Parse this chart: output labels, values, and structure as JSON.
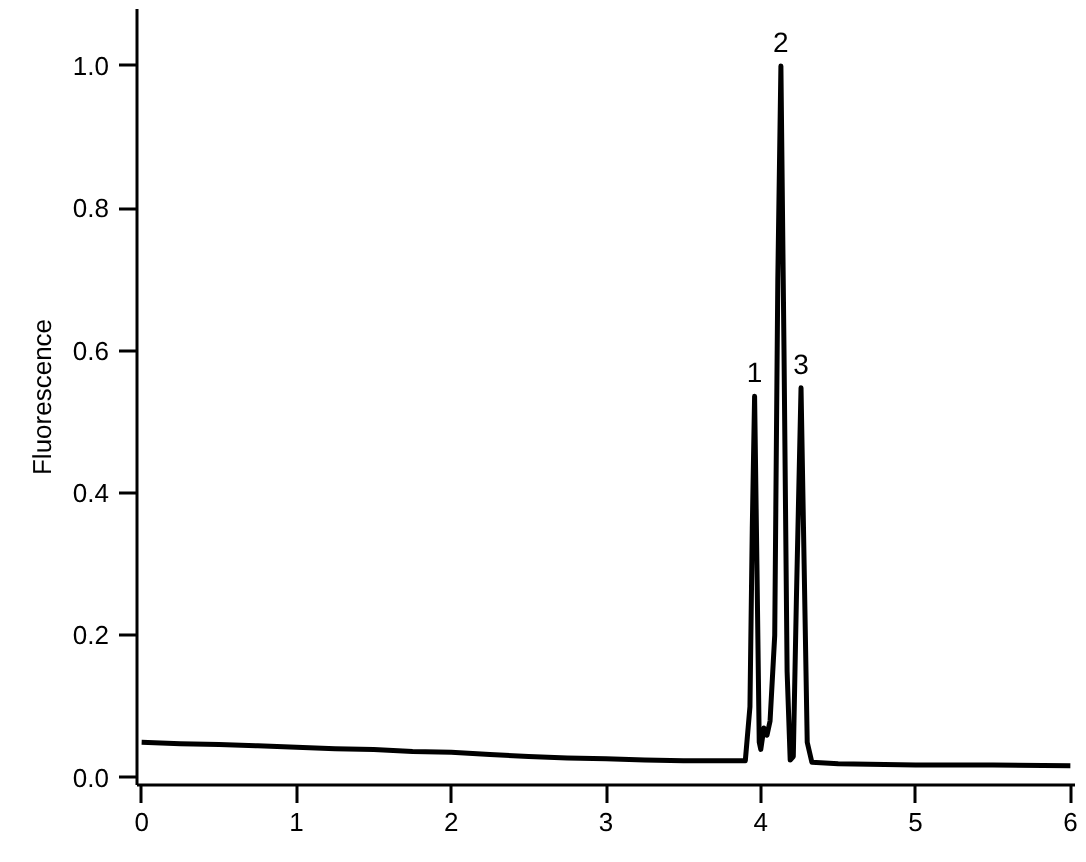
{
  "chart_data": {
    "type": "line",
    "ylabel": "Fluorescence",
    "color": "#000000",
    "x": [
      0.0,
      0.25,
      0.5,
      0.75,
      1.0,
      1.25,
      1.5,
      1.75,
      2.0,
      2.25,
      2.5,
      2.75,
      3.0,
      3.25,
      3.5,
      3.75,
      3.9,
      3.93,
      3.945,
      3.96,
      3.975,
      3.99,
      4.0,
      4.02,
      4.04,
      4.06,
      4.09,
      4.11,
      4.13,
      4.15,
      4.17,
      4.19,
      4.21,
      4.23,
      4.26,
      4.28,
      4.3,
      4.33,
      4.5,
      5.0,
      5.5,
      6.0
    ],
    "values": [
      0.05,
      0.048,
      0.047,
      0.045,
      0.043,
      0.041,
      0.04,
      0.037,
      0.036,
      0.033,
      0.03,
      0.028,
      0.027,
      0.025,
      0.024,
      0.024,
      0.024,
      0.1,
      0.35,
      0.536,
      0.3,
      0.05,
      0.04,
      0.07,
      0.06,
      0.08,
      0.2,
      0.7,
      1.0,
      0.6,
      0.15,
      0.025,
      0.03,
      0.25,
      0.548,
      0.3,
      0.05,
      0.022,
      0.02,
      0.018,
      0.018,
      0.017
    ],
    "xlim": [
      -0.03,
      6.03
    ],
    "ylim": [
      -0.01,
      1.08
    ],
    "xticks": [
      0,
      1,
      2,
      3,
      4,
      5,
      6
    ],
    "yticks": [
      {
        "value": 0,
        "label": "0.0"
      },
      0.2,
      0.4,
      0.6,
      0.8,
      {
        "value": 1,
        "label": "1.0"
      }
    ],
    "annotations": [
      {
        "text": "1",
        "x": 3.96,
        "y": 0.536
      },
      {
        "text": "2",
        "x": 4.13,
        "y": 1.0
      },
      {
        "text": "3",
        "x": 4.26,
        "y": 0.548
      }
    ]
  }
}
